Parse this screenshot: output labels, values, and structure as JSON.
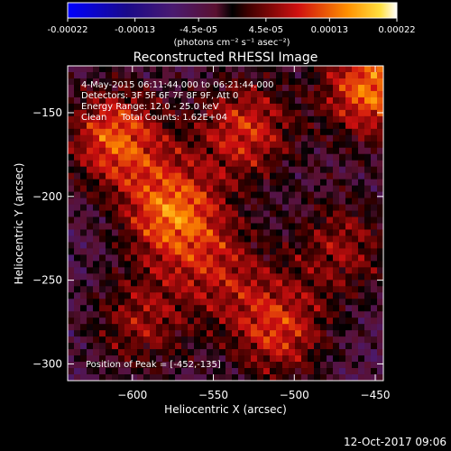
{
  "chart_data": {
    "type": "heatmap",
    "title": "Reconstructed RHESSI Image",
    "xlabel": "Heliocentric X (arcsec)",
    "ylabel": "Heliocentric Y (arcsec)",
    "xlim": [
      -640,
      -445
    ],
    "ylim": [
      -310,
      -122
    ],
    "x_ticks": [
      -600,
      -550,
      -500,
      -450
    ],
    "y_ticks": [
      -300,
      -250,
      -200,
      -150
    ],
    "colorbar": {
      "unit_label": "(photons cm⁻² s⁻¹ asec⁻²)",
      "range": [
        -0.00022,
        0.00022
      ],
      "tick_labels": [
        "-0.00022",
        "-0.00013",
        "-4.5e-05",
        "4.5e-05",
        "0.00013",
        "0.00022"
      ],
      "tick_values": [
        -0.00022,
        -0.00013,
        -4.5e-05,
        4.5e-05,
        0.00013,
        0.00022
      ]
    },
    "annotations": [
      "4-May-2015 06:11:44.000 to 06:21:44.000",
      "Detectors: 3F 5F 6F 7F 8F 9F, Att 0",
      "Energy Range: 12.0 - 25.0 keV",
      "Clean     Total Counts: 1.62E+04"
    ],
    "peak": {
      "label": "Position of Peak = [-452,-135]",
      "x": -452,
      "y": -135
    },
    "bright_regions": [
      {
        "x": -452,
        "y": -135,
        "intensity": 1.0
      },
      {
        "x": -575,
        "y": -210,
        "intensity": 0.95
      },
      {
        "x": -610,
        "y": -165,
        "intensity": 0.9
      },
      {
        "x": -530,
        "y": -160,
        "intensity": 0.75
      },
      {
        "x": -510,
        "y": -280,
        "intensity": 0.75
      },
      {
        "x": -470,
        "y": -230,
        "intensity": 0.55
      },
      {
        "x": -595,
        "y": -275,
        "intensity": 0.55
      },
      {
        "x": -545,
        "y": -245,
        "intensity": 0.5
      }
    ]
  },
  "footer": {
    "timestamp": "12-Oct-2017 09:06"
  }
}
